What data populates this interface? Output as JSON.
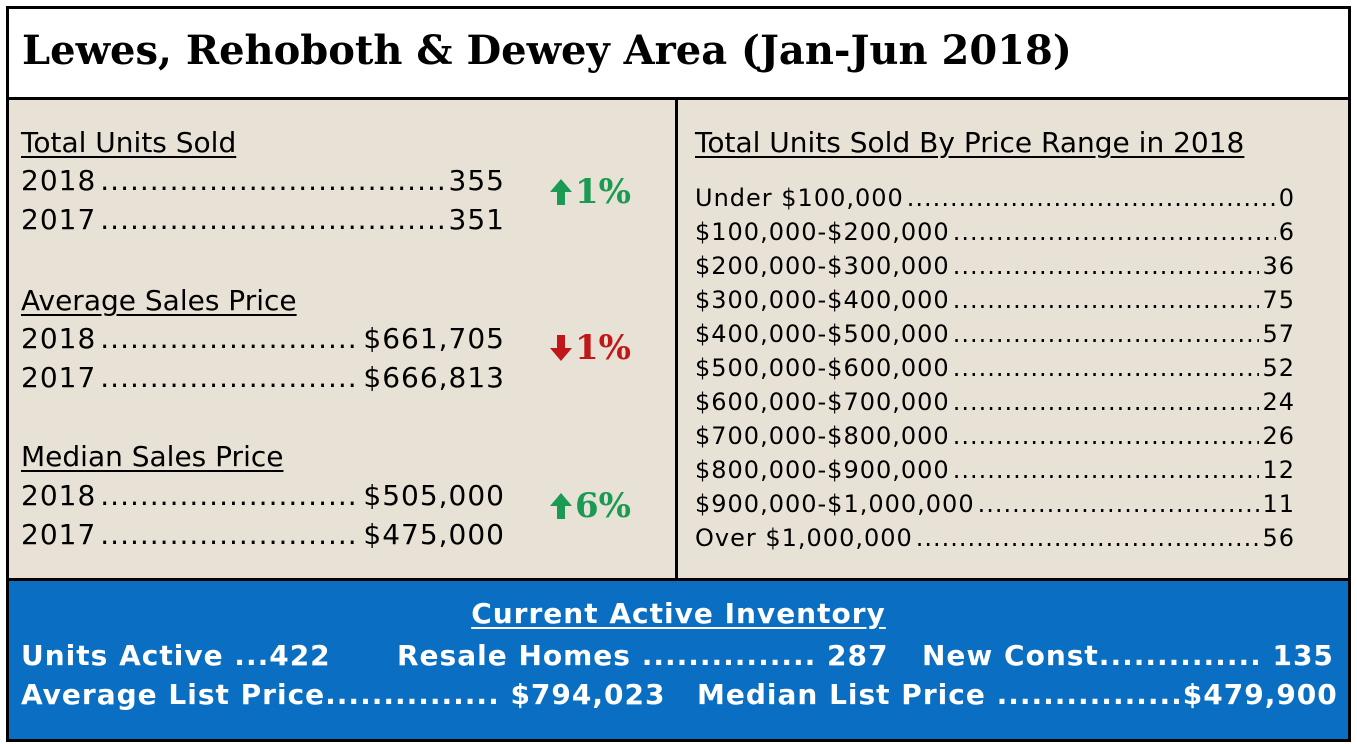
{
  "title": "Lewes, Rehoboth & Dewey Area (Jan-Jun 2018)",
  "total_units_sold": {
    "heading": "Total Units Sold",
    "rows": [
      {
        "year": "2018",
        "value": "355"
      },
      {
        "year": "2017",
        "value": "351"
      }
    ],
    "change": "1%",
    "direction": "up"
  },
  "average_sales_price": {
    "heading": "Average Sales Price",
    "rows": [
      {
        "year": "2018",
        "value": "$661,705"
      },
      {
        "year": "2017",
        "value": "$666,813"
      }
    ],
    "change": "1%",
    "direction": "down"
  },
  "median_sales_price": {
    "heading": "Median Sales Price",
    "rows": [
      {
        "year": "2018",
        "value": "$505,000"
      },
      {
        "year": "2017",
        "value": "$475,000"
      }
    ],
    "change": "6%",
    "direction": "up"
  },
  "price_range": {
    "heading": "Total Units Sold By Price Range in 2018",
    "rows": [
      {
        "range": "Under $100,000",
        "value": "0"
      },
      {
        "range": "$100,000-$200,000",
        "value": "6"
      },
      {
        "range": "$200,000-$300,000",
        "value": "36"
      },
      {
        "range": "$300,000-$400,000",
        "value": "75"
      },
      {
        "range": "$400,000-$500,000",
        "value": "57"
      },
      {
        "range": "$500,000-$600,000",
        "value": "52"
      },
      {
        "range": "$600,000-$700,000",
        "value": "24"
      },
      {
        "range": "$700,000-$800,000",
        "value": "26"
      },
      {
        "range": "$800,000-$900,000",
        "value": "12"
      },
      {
        "range": "$900,000-$1,000,000",
        "value": "11"
      },
      {
        "range": "Over $1,000,000",
        "value": "56"
      }
    ]
  },
  "inventory": {
    "heading": "Current Active Inventory",
    "units_active": "Units Active ...422",
    "resale_homes": "Resale Homes ............... 287",
    "new_const": "New Const.............. 135",
    "average_list_price": "Average List Price............... $794,023",
    "median_list_price": "Median List Price ................$479,900"
  },
  "colors": {
    "panel_bg": "#e8e2d6",
    "inventory_bg": "#0a6fc2",
    "up": "#1a9a52",
    "down": "#c01818"
  },
  "icons": {
    "up": "arrow-up-icon",
    "down": "arrow-down-icon"
  }
}
